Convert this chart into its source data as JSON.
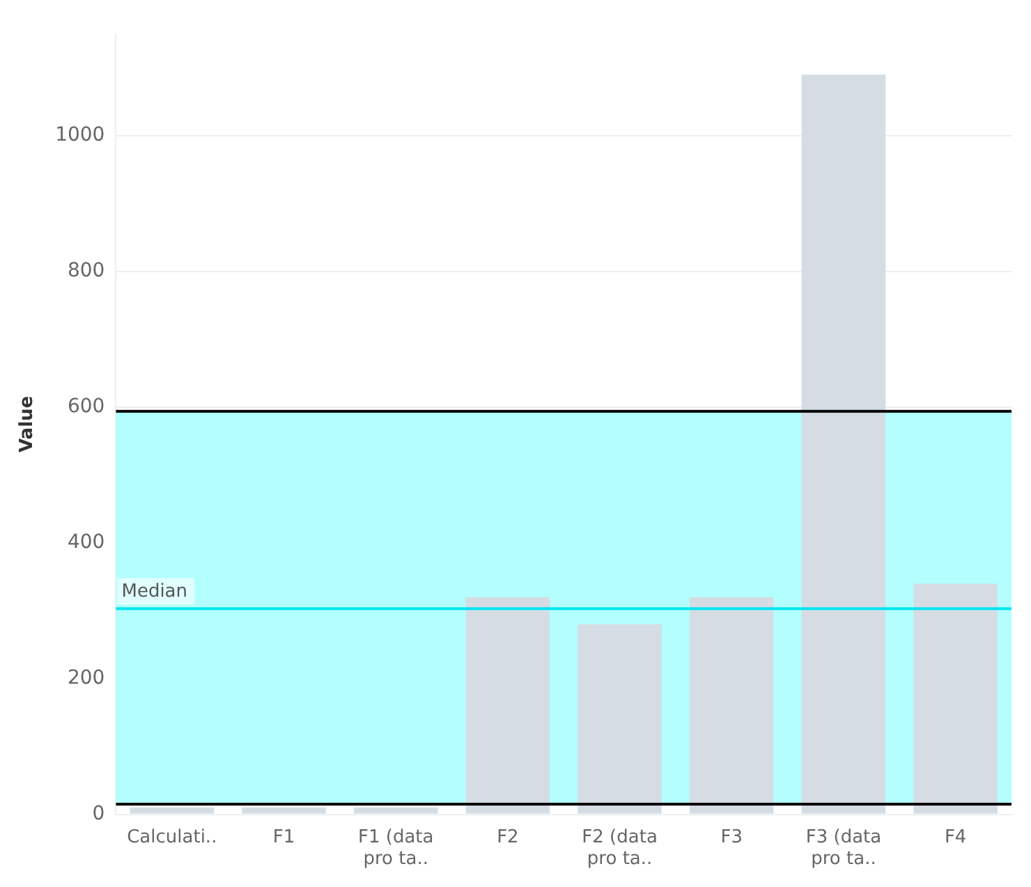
{
  "chart_data": {
    "type": "bar",
    "ylabel": "Value",
    "categories": [
      "Calculati..",
      "F1",
      "F1 (data pro ta..",
      "F2",
      "F2 (data pro ta..",
      "F3",
      "F3 (data pro ta..",
      "F4"
    ],
    "values": [
      10,
      10,
      10,
      320,
      280,
      320,
      1090,
      340
    ],
    "color": "#d5dce4",
    "ylim": [
      0,
      1150
    ],
    "yticks": [
      0,
      200,
      400,
      600,
      800,
      1000
    ],
    "grid": "y",
    "ref_lines": [
      {
        "axis": "y",
        "value": 303,
        "label": "Median",
        "color": "#00e5f0"
      },
      {
        "axis": "y",
        "value": 15,
        "color": "#000000"
      },
      {
        "axis": "y",
        "value": 594,
        "color": "#000000"
      }
    ],
    "bands": [
      {
        "axis": "y",
        "from": 15,
        "to": 594,
        "color": "#b3ffff"
      }
    ]
  }
}
